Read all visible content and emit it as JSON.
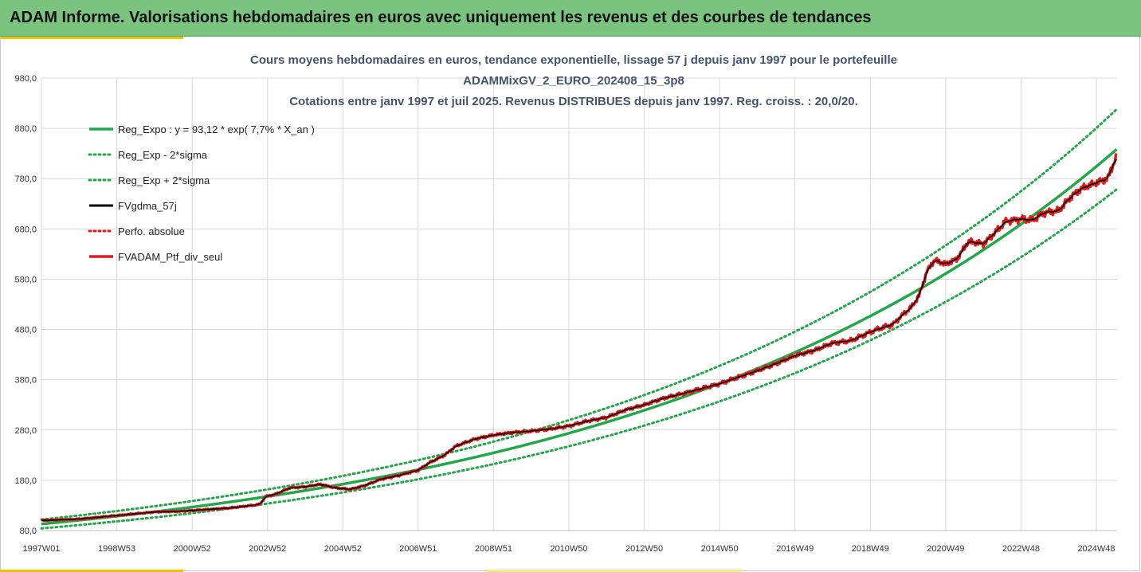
{
  "header": {
    "title": "ADAM Informe. Valorisations hebdomadaires en euros avec uniquement les revenus et des courbes de tendances"
  },
  "chart_data": {
    "type": "line",
    "title_lines": [
      "Cours moyens hebdomadaires  en euros, tendance exponentielle, lissage 57 j depuis janv 1997 pour le portefeuille",
      "ADAMMixGV_2_EURO_202408_15_3p8",
      "Cotations  entre janv 1997 et juil 2025. Revenus DISTRIBUES depuis janv 1997. Reg. croiss. : 20,0/20."
    ],
    "ylim": [
      80,
      980
    ],
    "y_ticks": [
      "980,0",
      "880,0",
      "780,0",
      "680,0",
      "580,0",
      "480,0",
      "380,0",
      "280,0",
      "180,0",
      "80,0"
    ],
    "y_tick_values": [
      980,
      880,
      780,
      680,
      580,
      480,
      380,
      280,
      180,
      80
    ],
    "x_range_years": [
      1997.0,
      2025.55
    ],
    "x_ticks": [
      "1997W01",
      "1998W53",
      "2000W52",
      "2002W52",
      "2004W52",
      "2006W51",
      "2008W51",
      "2010W50",
      "2012W50",
      "2014W50",
      "2016W49",
      "2018W49",
      "2020W49",
      "2022W48",
      "2024W48"
    ],
    "x_tick_values": [
      1997.0,
      1999.0,
      2001.0,
      2003.0,
      2005.0,
      2007.0,
      2009.0,
      2011.0,
      2013.0,
      2015.0,
      2017.0,
      2019.0,
      2021.0,
      2023.0,
      2025.0
    ],
    "grid": true,
    "legend_position": "top-left",
    "regression": {
      "a": 93.12,
      "rate": 0.077,
      "sigma_factor": 0.095
    },
    "series": [
      {
        "name": "Reg_Expo : y = 93,12 * exp( 7,7% *  X_an )",
        "style": "solid",
        "color": "#22a84a",
        "width": 3.5,
        "kind": "regression"
      },
      {
        "name": "Reg_Exp - 2*sigma",
        "style": "dotted",
        "color": "#22a84a",
        "width": 3,
        "kind": "lower"
      },
      {
        "name": "Reg_Exp + 2*sigma",
        "style": "dotted",
        "color": "#22a84a",
        "width": 3,
        "kind": "upper"
      },
      {
        "name": "FVgdma_57j",
        "style": "solid",
        "color": "#000000",
        "width": 3,
        "kind": "smooth"
      },
      {
        "name": "Perfo. absolue",
        "style": "dotted",
        "color": "#e41a1a",
        "width": 3,
        "kind": "none"
      },
      {
        "name": "FVADAM_Ptf_div_seul",
        "style": "solid",
        "color": "#e41a1a",
        "width": 3.5,
        "kind": "actual"
      }
    ],
    "actual_points": {
      "x": [
        1997.0,
        1998.0,
        1999.0,
        2000.0,
        2000.6,
        2001.0,
        2002.0,
        2002.8,
        2002.95,
        2003.2,
        2003.6,
        2004.0,
        2004.4,
        2004.8,
        2005.2,
        2005.6,
        2006.0,
        2006.5,
        2007.0,
        2007.3,
        2007.7,
        2008.0,
        2008.5,
        2009.0,
        2009.5,
        2010.0,
        2010.5,
        2011.0,
        2011.5,
        2012.0,
        2012.5,
        2013.0,
        2013.5,
        2014.0,
        2014.5,
        2015.0,
        2015.5,
        2016.0,
        2016.5,
        2017.0,
        2017.5,
        2018.0,
        2018.5,
        2019.0,
        2019.3,
        2019.6,
        2019.8,
        2019.95,
        2020.1,
        2020.3,
        2020.5,
        2020.7,
        2021.0,
        2021.3,
        2021.6,
        2022.0,
        2022.3,
        2022.6,
        2023.0,
        2023.3,
        2023.6,
        2024.0,
        2024.3,
        2024.6,
        2025.0,
        2025.3,
        2025.55
      ],
      "y": [
        100,
        103,
        110,
        117,
        118,
        120,
        125,
        132,
        148,
        152,
        165,
        167,
        172,
        165,
        162,
        170,
        182,
        190,
        200,
        215,
        230,
        248,
        262,
        270,
        275,
        278,
        282,
        288,
        298,
        305,
        320,
        330,
        343,
        352,
        362,
        372,
        385,
        398,
        412,
        428,
        438,
        453,
        458,
        475,
        483,
        490,
        505,
        515,
        525,
        548,
        595,
        618,
        610,
        620,
        655,
        650,
        672,
        695,
        700,
        697,
        712,
        716,
        742,
        760,
        772,
        780,
        828
      ]
    }
  }
}
